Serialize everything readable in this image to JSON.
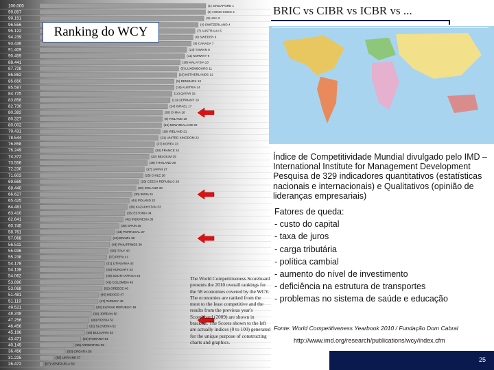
{
  "header": {
    "title": "BRIC vs CIBR vs ICBR vs ...",
    "chart_title": "Ranking do WCY"
  },
  "chart_data": {
    "type": "bar",
    "orientation": "horizontal",
    "color": "#9c9c9c",
    "categories": [
      "(1) SINGAPORE 1",
      "(2) HONG KONG 2",
      "(3) USA 3",
      "(4) SWITZERLAND 4",
      "(7) AUSTRALIA 5",
      "(6) SWEDEN 6",
      "(8) CANADA 7",
      "(23) TAIWAN 8",
      "(11) NORWAY 9",
      "(18) MALAYSIA 10",
      "(5) LUXEMBOURG 11",
      "(10) NETHERLANDS 12",
      "(5) DENMARK 13",
      "(16) AUSTRIA 14",
      "(14) QATAR 15",
      "(13) GERMANY 16",
      "(24) ISRAEL 17",
      "(20) CHINA 18",
      "(9) FINLAND 19",
      "(15) NEW ZEALAND 20",
      "(19) IRELAND 21",
      "(21) UNITED KINGDOM 22",
      "(27) KOREA 23",
      "(28) FRANCE 24",
      "(22) BELGIUM 25",
      "(26) THAILAND 26",
      "(17) JAPAN 27",
      "(25) CHILE 28",
      "(29) CZECH REPUBLIC 29",
      "(20) ICELAND 30",
      "(30) INDIA 31",
      "(44) POLAND 32",
      "(36) KAZAKHSTAN 33",
      "(35) ESTONIA 34",
      "(42) INDONESIA 35",
      "(39) SPAIN 36",
      "(34) PORTUGAL 37",
      "(40) BRAZIL 38",
      "(43) PHILIPPINES 39",
      "(50) ITALY 40",
      "(37) PERU 41",
      "(31) LITHUANIA 42",
      "(45) HUNGARY 43",
      "(48) SOUTH AFRICA 44",
      "(41) COLOMBIA 45",
      "(52) GREECE 46",
      "(46) MEXICO 47",
      "(47) TURKEY 48",
      "(33) SLOVAK REPUBLIC 49",
      "(38) JORDAN 50",
      "(49) RUSSIA 51",
      "(32) SLOVENIA 52",
      "(38) BULGARIA 53",
      "(54) ROMANIA 54",
      "(55) ARGENTINA 55",
      "(53) CROATIA 56",
      "(56) UKRAINE 57",
      "(57) VENEZUELA 58"
    ],
    "values": [
      100,
      99.857,
      99.151,
      96.556,
      95.122,
      94.239,
      93.436,
      91.409,
      90.459,
      88.441,
      87.728,
      86.862,
      85.65,
      85.587,
      84.725,
      83.858,
      82.73,
      80.382,
      80.327,
      80.002,
      79.431,
      78.544,
      76.858,
      76.249,
      74.372,
      73.556,
      72.23,
      71.603,
      69.669,
      68.44,
      66.627,
      65.425,
      64.481,
      63.41,
      62.641,
      60.745,
      58.761,
      57.068,
      56.511,
      55.936,
      55.238,
      54.178,
      54.138,
      54.062,
      53.89,
      53.068,
      51.481,
      51.119,
      49.521,
      48.248,
      47.256,
      46.456,
      45.196,
      43.471,
      40.145,
      36.456,
      31.225,
      26.472
    ],
    "value_labels": [
      "100.000",
      "99.857",
      "99.151",
      "96.556",
      "95.122",
      "94.239",
      "93.436",
      "91.409",
      "90.459",
      "88.441",
      "87.728",
      "86.862",
      "85.650",
      "85.587",
      "84.725",
      "83.858",
      "82.730",
      "80.382",
      "80.327",
      "80.002",
      "79.431",
      "78.544",
      "76.858",
      "76.249",
      "74.372",
      "73.556",
      "72.230",
      "71.603",
      "69.669",
      "68.440",
      "66.627",
      "65.425",
      "64.481",
      "63.410",
      "62.641",
      "60.745",
      "58.761",
      "57.068",
      "56.511",
      "55.936",
      "55.238",
      "54.178",
      "54.138",
      "54.062",
      "53.890",
      "53.068",
      "51.481",
      "51.119",
      "49.521",
      "48.248",
      "47.256",
      "46.456",
      "45.196",
      "43.471",
      "40.145",
      "36.456",
      "31.225",
      "26.472"
    ],
    "xlim": [
      25,
      100
    ],
    "note": "The World Competitiveness Scoreboard presents the 2010 overall rankings for the 58 economies covered by the WCY. The economies are ranked from the most to the least competitive and the results from the previous year's Scoreboard (2009) are shown in brackets. The Scores shown to the left are actually indices (0 to 100) generated for the unique purpose of constructing charts and graphics."
  },
  "info": [
    "Índice de Competitividade Mundial divulgado pelo IMD – International Institute for Management Development",
    "Pesquisa de 329 indicadores quantitativos (estatísticas nacionais e internacionais) e Qualitativos (opinião de lideranças empresariais)"
  ],
  "factors": {
    "heading": "Fatores de queda:",
    "items": [
      "- custo do capital",
      "- taxa de juros",
      "- carga tributária",
      "- política cambial",
      "- aumento do nível de investimento",
      "- deficiência na estrutura de transportes",
      "- problemas no sistema de saúde e educação"
    ]
  },
  "footer": {
    "source": "Fonte: World Competitiveness Yearbook 2010 / Fundação Dom Cabral",
    "url": "http://www.imd.org/research/publications/wcy/index.cfm",
    "page": "25"
  }
}
